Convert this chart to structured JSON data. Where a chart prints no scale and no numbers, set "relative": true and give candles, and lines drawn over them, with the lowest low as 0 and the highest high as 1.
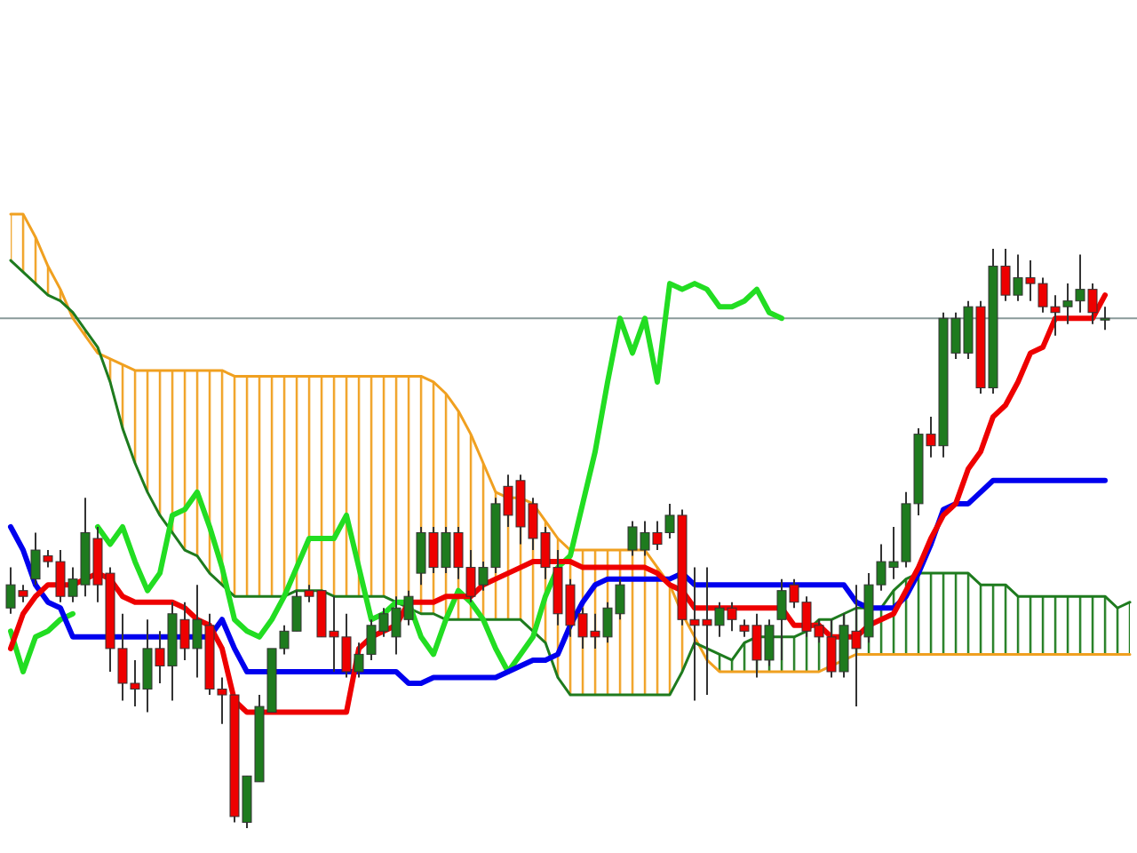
{
  "chart_data": {
    "type": "candlestick",
    "relative": true,
    "grid": false,
    "legend": false,
    "categories": [
      null,
      null,
      null,
      null,
      null,
      null,
      null,
      null,
      null,
      null,
      null,
      null,
      null,
      null,
      null,
      null,
      null,
      null,
      null,
      null,
      null,
      null,
      null,
      null,
      null,
      null,
      null,
      null,
      null,
      null,
      null,
      null,
      null,
      null,
      null,
      null,
      null,
      null,
      null,
      null,
      null,
      null,
      null,
      null,
      null,
      null,
      null,
      null,
      null,
      null,
      null,
      null,
      null,
      null,
      null,
      null,
      null,
      null,
      null,
      null,
      null,
      null,
      null,
      null,
      null,
      null,
      null,
      null,
      null,
      null,
      null,
      null,
      null,
      null,
      null,
      null,
      null,
      null,
      null,
      null,
      null,
      null,
      null,
      null,
      null,
      null,
      null,
      null,
      null,
      null,
      null
    ],
    "ohlc": [
      [
        0.38,
        0.45,
        0.37,
        0.42
      ],
      [
        0.41,
        0.42,
        0.39,
        0.4
      ],
      [
        0.43,
        0.51,
        0.42,
        0.48
      ],
      [
        0.47,
        0.48,
        0.45,
        0.46
      ],
      [
        0.46,
        0.48,
        0.39,
        0.4
      ],
      [
        0.4,
        0.45,
        0.39,
        0.43
      ],
      [
        0.42,
        0.57,
        0.4,
        0.51
      ],
      [
        0.5,
        0.52,
        0.39,
        0.42
      ],
      [
        0.44,
        0.45,
        0.27,
        0.31
      ],
      [
        0.31,
        0.37,
        0.22,
        0.25
      ],
      [
        0.25,
        0.29,
        0.21,
        0.24
      ],
      [
        0.24,
        0.36,
        0.2,
        0.31
      ],
      [
        0.31,
        0.34,
        0.25,
        0.28
      ],
      [
        0.28,
        0.39,
        0.22,
        0.37
      ],
      [
        0.36,
        0.39,
        0.29,
        0.31
      ],
      [
        0.31,
        0.42,
        0.26,
        0.36
      ],
      [
        0.35,
        0.37,
        0.23,
        0.24
      ],
      [
        0.24,
        0.26,
        0.18,
        0.23
      ],
      [
        0.23,
        0.23,
        0.01,
        0.02
      ],
      [
        0.01,
        0.09,
        0.0,
        0.09
      ],
      [
        0.08,
        0.23,
        0.08,
        0.21
      ],
      [
        0.2,
        0.31,
        0.2,
        0.31
      ],
      [
        0.31,
        0.35,
        0.3,
        0.34
      ],
      [
        0.34,
        0.41,
        0.34,
        0.4
      ],
      [
        0.41,
        0.42,
        0.39,
        0.4
      ],
      [
        0.41,
        0.41,
        0.33,
        0.33
      ],
      [
        0.34,
        0.4,
        0.27,
        0.33
      ],
      [
        0.33,
        0.37,
        0.26,
        0.27
      ],
      [
        0.27,
        0.32,
        0.26,
        0.3
      ],
      [
        0.3,
        0.36,
        0.29,
        0.35
      ],
      [
        0.34,
        0.38,
        0.33,
        0.37
      ],
      [
        0.33,
        0.4,
        0.3,
        0.38
      ],
      [
        0.36,
        0.41,
        0.35,
        0.4
      ],
      [
        0.44,
        0.52,
        0.42,
        0.51
      ],
      [
        0.51,
        0.52,
        0.44,
        0.45
      ],
      [
        0.45,
        0.52,
        0.44,
        0.51
      ],
      [
        0.51,
        0.52,
        0.43,
        0.45
      ],
      [
        0.45,
        0.48,
        0.39,
        0.4
      ],
      [
        0.42,
        0.46,
        0.41,
        0.45
      ],
      [
        0.45,
        0.57,
        0.44,
        0.56
      ],
      [
        0.59,
        0.61,
        0.52,
        0.54
      ],
      [
        0.6,
        0.61,
        0.49,
        0.52
      ],
      [
        0.56,
        0.57,
        0.48,
        0.5
      ],
      [
        0.51,
        0.52,
        0.43,
        0.45
      ],
      [
        0.45,
        0.48,
        0.35,
        0.37
      ],
      [
        0.42,
        0.43,
        0.33,
        0.35
      ],
      [
        0.37,
        0.38,
        0.31,
        0.33
      ],
      [
        0.34,
        0.37,
        0.31,
        0.33
      ],
      [
        0.33,
        0.39,
        0.32,
        0.38
      ],
      [
        0.37,
        0.43,
        0.36,
        0.42
      ],
      [
        0.48,
        0.53,
        0.47,
        0.52
      ],
      [
        0.48,
        0.53,
        0.47,
        0.51
      ],
      [
        0.51,
        0.53,
        0.48,
        0.49
      ],
      [
        0.51,
        0.56,
        0.5,
        0.54
      ],
      [
        0.54,
        0.55,
        0.35,
        0.36
      ],
      [
        0.36,
        0.45,
        0.22,
        0.35
      ],
      [
        0.36,
        0.45,
        0.23,
        0.35
      ],
      [
        0.35,
        0.39,
        0.33,
        0.38
      ],
      [
        0.38,
        0.39,
        0.34,
        0.36
      ],
      [
        0.35,
        0.36,
        0.33,
        0.34
      ],
      [
        0.35,
        0.37,
        0.26,
        0.29
      ],
      [
        0.29,
        0.36,
        0.28,
        0.35
      ],
      [
        0.36,
        0.43,
        0.29,
        0.41
      ],
      [
        0.42,
        0.43,
        0.38,
        0.39
      ],
      [
        0.39,
        0.4,
        0.33,
        0.34
      ],
      [
        0.35,
        0.36,
        0.32,
        0.33
      ],
      [
        0.33,
        0.36,
        0.26,
        0.27
      ],
      [
        0.27,
        0.37,
        0.26,
        0.35
      ],
      [
        0.34,
        0.42,
        0.21,
        0.31
      ],
      [
        0.33,
        0.44,
        0.32,
        0.42
      ],
      [
        0.42,
        0.49,
        0.41,
        0.46
      ],
      [
        0.45,
        0.52,
        0.43,
        0.46
      ],
      [
        0.46,
        0.58,
        0.45,
        0.56
      ],
      [
        0.56,
        0.69,
        0.54,
        0.68
      ],
      [
        0.68,
        0.71,
        0.64,
        0.66
      ],
      [
        0.66,
        0.89,
        0.64,
        0.88
      ],
      [
        0.82,
        0.89,
        0.81,
        0.88
      ],
      [
        0.82,
        0.91,
        0.81,
        0.9
      ],
      [
        0.9,
        0.91,
        0.75,
        0.76
      ],
      [
        0.76,
        1.0,
        0.75,
        0.97
      ],
      [
        0.97,
        1.0,
        0.91,
        0.92
      ],
      [
        0.92,
        0.99,
        0.91,
        0.95
      ],
      [
        0.95,
        0.98,
        0.91,
        0.94
      ],
      [
        0.94,
        0.95,
        0.89,
        0.9
      ],
      [
        0.9,
        0.92,
        0.85,
        0.89
      ],
      [
        0.9,
        0.94,
        0.87,
        0.91
      ],
      [
        0.91,
        0.99,
        0.89,
        0.93
      ],
      [
        0.93,
        0.94,
        0.87,
        0.89
      ],
      [
        0.88,
        0.9,
        0.86,
        0.88
      ],
      null,
      null
    ],
    "series": [
      {
        "type": "line",
        "color": "#f0a020",
        "lower": [
          0.98,
          0.96,
          0.94,
          0.92,
          0.91,
          0.89,
          0.86,
          0.83,
          0.77,
          0.69,
          0.63,
          0.58,
          0.54,
          0.51,
          0.48,
          0.47,
          0.44,
          0.42,
          0.4,
          0.4,
          0.4,
          0.4,
          0.4,
          0.41,
          0.41,
          0.41,
          0.4,
          0.4,
          0.4,
          0.4,
          0.4,
          0.39,
          0.38,
          0.37,
          0.37,
          0.36,
          0.36,
          0.36,
          0.36,
          0.36,
          0.36,
          0.36,
          0.34,
          0.32,
          0.26,
          0.23,
          0.23,
          0.23,
          0.23,
          0.23,
          0.23,
          0.23,
          0.23,
          0.23,
          0.27,
          0.32,
          null,
          null,
          null,
          null,
          null,
          null,
          null,
          null,
          null,
          null,
          null,
          null,
          null,
          null,
          null,
          null,
          null,
          null,
          null,
          null,
          null,
          null,
          null,
          null,
          null,
          null,
          null,
          null,
          null,
          null,
          null,
          null,
          null,
          null,
          null
        ],
        "upper": [
          1.06,
          1.06,
          1.02,
          0.97,
          0.93,
          0.88,
          0.85,
          0.82,
          0.81,
          0.8,
          0.79,
          0.79,
          0.79,
          0.79,
          0.79,
          0.79,
          0.79,
          0.79,
          0.78,
          0.78,
          0.78,
          0.78,
          0.78,
          0.78,
          0.78,
          0.78,
          0.78,
          0.78,
          0.78,
          0.78,
          0.78,
          0.78,
          0.78,
          0.78,
          0.77,
          0.75,
          0.72,
          0.68,
          0.63,
          0.58,
          0.57,
          0.57,
          0.56,
          0.53,
          0.5,
          0.48,
          0.48,
          0.48,
          0.48,
          0.48,
          0.48,
          0.48,
          0.45,
          0.42,
          0.37,
          0.33,
          null,
          null,
          null,
          null,
          null,
          null,
          null,
          null,
          null,
          null,
          null,
          null,
          null,
          null,
          null,
          null,
          null,
          null,
          null,
          null,
          null,
          null,
          null,
          null,
          null,
          null,
          null,
          null,
          null,
          null,
          null,
          null,
          null,
          null,
          null
        ],
        "values": [
          1.06,
          1.06,
          1.02,
          0.97,
          0.93,
          0.88,
          0.85,
          0.82,
          0.81,
          0.8,
          0.79,
          0.79,
          0.79,
          0.79,
          0.79,
          0.79,
          0.79,
          0.79,
          0.78,
          0.78,
          0.78,
          0.78,
          0.78,
          0.78,
          0.78,
          0.78,
          0.78,
          0.78,
          0.78,
          0.78,
          0.78,
          0.78,
          0.78,
          0.78,
          0.77,
          0.75,
          0.72,
          0.68,
          0.63,
          0.58,
          0.57,
          0.57,
          0.56,
          0.53,
          0.5,
          0.48,
          0.48,
          0.48,
          0.48,
          0.48,
          0.48,
          0.48,
          0.45,
          0.42,
          0.37,
          0.33,
          0.29,
          0.27,
          0.27,
          0.27,
          0.27,
          0.27,
          0.27,
          0.27,
          0.27,
          0.27,
          0.28,
          0.29,
          0.3,
          0.3,
          0.3,
          0.3,
          0.3,
          0.3,
          0.3,
          0.3,
          0.3,
          0.3,
          0.3,
          0.3,
          0.3,
          0.3,
          0.3,
          0.3,
          0.3,
          0.3,
          0.3,
          0.3,
          0.3,
          0.3,
          0.3
        ]
      },
      {
        "type": "line",
        "color": "#1e7b1e",
        "lower": [
          null,
          null,
          null,
          null,
          null,
          null,
          null,
          null,
          null,
          null,
          null,
          null,
          null,
          null,
          null,
          null,
          null,
          null,
          null,
          null,
          null,
          null,
          null,
          null,
          null,
          null,
          null,
          null,
          null,
          null,
          null,
          null,
          null,
          null,
          null,
          null,
          null,
          null,
          null,
          null,
          null,
          null,
          null,
          null,
          null,
          null,
          null,
          null,
          null,
          null,
          null,
          null,
          null,
          null,
          null,
          null,
          0.29,
          0.27,
          0.27,
          0.27,
          0.27,
          0.27,
          0.27,
          0.27,
          0.27,
          0.27,
          0.28,
          0.29,
          0.3,
          0.3,
          0.3,
          0.3,
          0.3,
          0.3,
          0.3,
          0.3,
          0.3,
          0.3,
          0.3,
          0.3,
          0.3,
          0.3,
          0.3,
          0.3,
          0.3,
          0.3,
          0.3,
          0.3,
          0.3,
          0.3,
          0.3
        ],
        "upper": [
          null,
          null,
          null,
          null,
          null,
          null,
          null,
          null,
          null,
          null,
          null,
          null,
          null,
          null,
          null,
          null,
          null,
          null,
          null,
          null,
          null,
          null,
          null,
          null,
          null,
          null,
          null,
          null,
          null,
          null,
          null,
          null,
          null,
          null,
          null,
          null,
          null,
          null,
          null,
          null,
          null,
          null,
          null,
          null,
          null,
          null,
          null,
          null,
          null,
          null,
          null,
          null,
          null,
          null,
          null,
          null,
          0.31,
          0.3,
          0.29,
          0.32,
          0.33,
          0.33,
          0.33,
          0.33,
          0.34,
          0.36,
          0.36,
          0.37,
          0.38,
          0.38,
          0.38,
          0.41,
          0.43,
          0.44,
          0.44,
          0.44,
          0.44,
          0.44,
          0.42,
          0.42,
          0.42,
          0.4,
          0.4,
          0.4,
          0.4,
          0.4,
          0.4,
          0.4,
          0.4,
          0.38,
          0.39
        ],
        "values": [
          0.98,
          0.96,
          0.94,
          0.92,
          0.91,
          0.89,
          0.86,
          0.83,
          0.77,
          0.69,
          0.63,
          0.58,
          0.54,
          0.51,
          0.48,
          0.47,
          0.44,
          0.42,
          0.4,
          0.4,
          0.4,
          0.4,
          0.4,
          0.41,
          0.41,
          0.41,
          0.4,
          0.4,
          0.4,
          0.4,
          0.4,
          0.39,
          0.38,
          0.37,
          0.37,
          0.36,
          0.36,
          0.36,
          0.36,
          0.36,
          0.36,
          0.36,
          0.34,
          0.32,
          0.26,
          0.23,
          0.23,
          0.23,
          0.23,
          0.23,
          0.23,
          0.23,
          0.23,
          0.23,
          0.27,
          0.32,
          0.31,
          0.3,
          0.29,
          0.32,
          0.33,
          0.33,
          0.33,
          0.33,
          0.34,
          0.36,
          0.36,
          0.37,
          0.38,
          0.38,
          0.38,
          0.41,
          0.43,
          0.44,
          0.44,
          0.44,
          0.44,
          0.44,
          0.42,
          0.42,
          0.42,
          0.4,
          0.4,
          0.4,
          0.4,
          0.4,
          0.4,
          0.4,
          0.4,
          0.38,
          0.39
        ]
      },
      {
        "type": "line",
        "color": "#22dd22",
        "values": [
          0.34,
          0.27,
          0.33,
          0.34,
          0.36,
          0.37,
          null,
          0.52,
          0.49,
          0.52,
          0.46,
          0.41,
          0.44,
          0.54,
          0.55,
          0.58,
          0.52,
          0.45,
          0.36,
          0.34,
          0.33,
          0.36,
          0.4,
          0.45,
          0.5,
          0.5,
          0.5,
          0.54,
          0.45,
          0.36,
          0.37,
          0.39,
          0.39,
          0.33,
          0.3,
          0.36,
          0.41,
          0.39,
          0.36,
          0.31,
          0.27,
          0.3,
          0.33,
          0.4,
          0.45,
          0.47,
          0.56,
          0.65,
          0.77,
          0.88,
          0.82,
          0.88,
          0.77,
          0.94,
          0.93,
          0.94,
          0.93,
          0.9,
          0.9,
          0.91,
          0.93,
          0.89,
          0.88,
          null,
          null,
          null,
          null,
          null,
          null,
          null,
          null,
          null,
          null,
          null,
          null,
          null,
          null,
          null,
          null,
          null,
          null,
          null,
          null,
          null,
          null,
          null,
          null,
          null,
          null,
          null,
          null
        ]
      },
      {
        "type": "line",
        "color": "#0000ee",
        "values": [
          0.52,
          0.48,
          0.42,
          0.39,
          0.38,
          0.33,
          0.33,
          0.33,
          0.33,
          0.33,
          0.33,
          0.33,
          0.33,
          0.33,
          0.33,
          0.33,
          0.33,
          0.36,
          0.31,
          0.27,
          0.27,
          0.27,
          0.27,
          0.27,
          0.27,
          0.27,
          0.27,
          0.27,
          0.27,
          0.27,
          0.27,
          0.27,
          0.25,
          0.25,
          0.26,
          0.26,
          0.26,
          0.26,
          0.26,
          0.26,
          0.27,
          0.28,
          0.29,
          0.29,
          0.3,
          0.35,
          0.39,
          0.42,
          0.43,
          0.43,
          0.43,
          0.43,
          0.43,
          0.43,
          0.44,
          0.42,
          0.42,
          0.42,
          0.42,
          0.42,
          0.42,
          0.42,
          0.42,
          0.42,
          0.42,
          0.42,
          0.42,
          0.42,
          0.39,
          0.38,
          0.38,
          0.38,
          0.4,
          0.44,
          0.49,
          0.55,
          0.56,
          0.56,
          0.58,
          0.6,
          0.6,
          0.6,
          0.6,
          0.6,
          0.6,
          0.6,
          0.6,
          0.6,
          0.6,
          null,
          null
        ]
      },
      {
        "type": "line",
        "color": "#ee0000",
        "values": [
          0.31,
          0.37,
          0.4,
          0.42,
          0.42,
          0.42,
          0.43,
          0.44,
          0.43,
          0.4,
          0.39,
          0.39,
          0.39,
          0.39,
          0.38,
          0.36,
          0.35,
          0.31,
          0.22,
          0.2,
          0.2,
          0.2,
          0.2,
          0.2,
          0.2,
          0.2,
          0.2,
          0.2,
          0.31,
          0.33,
          0.34,
          0.35,
          0.39,
          0.39,
          0.39,
          0.4,
          0.4,
          0.4,
          0.42,
          0.43,
          0.44,
          0.45,
          0.46,
          0.46,
          0.46,
          0.46,
          0.45,
          0.45,
          0.45,
          0.45,
          0.45,
          0.45,
          0.44,
          0.42,
          0.41,
          0.38,
          0.38,
          0.38,
          0.38,
          0.38,
          0.38,
          0.38,
          0.38,
          0.35,
          0.35,
          0.35,
          0.33,
          0.33,
          0.33,
          0.35,
          0.36,
          0.37,
          0.41,
          0.45,
          0.5,
          0.54,
          0.56,
          0.62,
          0.65,
          0.71,
          0.73,
          0.77,
          0.82,
          0.83,
          0.88,
          0.88,
          0.88,
          0.88,
          0.92,
          null,
          null
        ]
      }
    ],
    "ref_lines": [
      {
        "axis": "y",
        "value": 0.88,
        "color": "#8a9a9a"
      }
    ]
  }
}
